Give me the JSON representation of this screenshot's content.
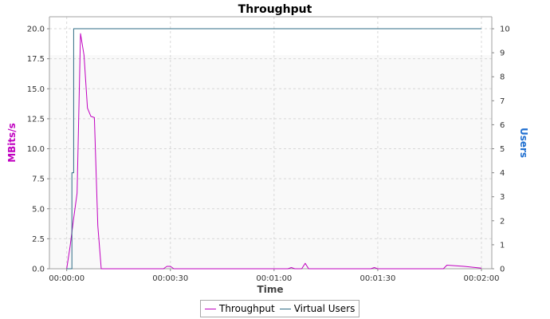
{
  "chart_data": {
    "type": "line",
    "title": "Throughput",
    "xlabel": "Time",
    "ylabel": "MBits/s",
    "y2label": "Users",
    "xlim": [
      -5,
      123
    ],
    "ylim": [
      0,
      21
    ],
    "y2lim": [
      0,
      10.5
    ],
    "grid": true,
    "legend_position": "bottom",
    "x_ticks": [
      {
        "value": 0,
        "label": "00:00:00"
      },
      {
        "value": 30,
        "label": "00:00:30"
      },
      {
        "value": 60,
        "label": "00:01:00"
      },
      {
        "value": 90,
        "label": "00:01:30"
      },
      {
        "value": 120,
        "label": "00:02:00"
      }
    ],
    "y_ticks": [
      "0.0",
      "2.5",
      "5.0",
      "7.5",
      "10.0",
      "12.5",
      "15.0",
      "17.5",
      "20.0"
    ],
    "y2_ticks": [
      "0",
      "1",
      "2",
      "3",
      "4",
      "5",
      "6",
      "7",
      "8",
      "9",
      "10"
    ],
    "series": [
      {
        "name": "Throughput",
        "axis": "left",
        "color": "#c000c0",
        "points": [
          [
            0,
            0
          ],
          [
            1,
            1.9
          ],
          [
            2,
            4.2
          ],
          [
            3,
            6.3
          ],
          [
            4,
            19.6
          ],
          [
            5,
            17.8
          ],
          [
            6,
            13.4
          ],
          [
            7,
            12.7
          ],
          [
            8,
            12.6
          ],
          [
            9,
            3.6
          ],
          [
            10,
            0
          ],
          [
            28,
            0
          ],
          [
            29,
            0.2
          ],
          [
            30,
            0.2
          ],
          [
            31,
            0
          ],
          [
            64,
            0
          ],
          [
            65,
            0.1
          ],
          [
            66,
            0
          ],
          [
            68,
            0
          ],
          [
            69,
            0.45
          ],
          [
            70,
            0
          ],
          [
            88,
            0
          ],
          [
            89,
            0.1
          ],
          [
            90,
            0
          ],
          [
            109,
            0
          ],
          [
            110,
            0.3
          ],
          [
            115,
            0.2
          ],
          [
            120,
            0.05
          ]
        ]
      },
      {
        "name": "Virtual Users",
        "axis": "right",
        "color": "#2f6b84",
        "points": [
          [
            0,
            0
          ],
          [
            1.5,
            0
          ],
          [
            1.5,
            4
          ],
          [
            2,
            4
          ],
          [
            2,
            10
          ],
          [
            120,
            10
          ]
        ]
      }
    ]
  }
}
